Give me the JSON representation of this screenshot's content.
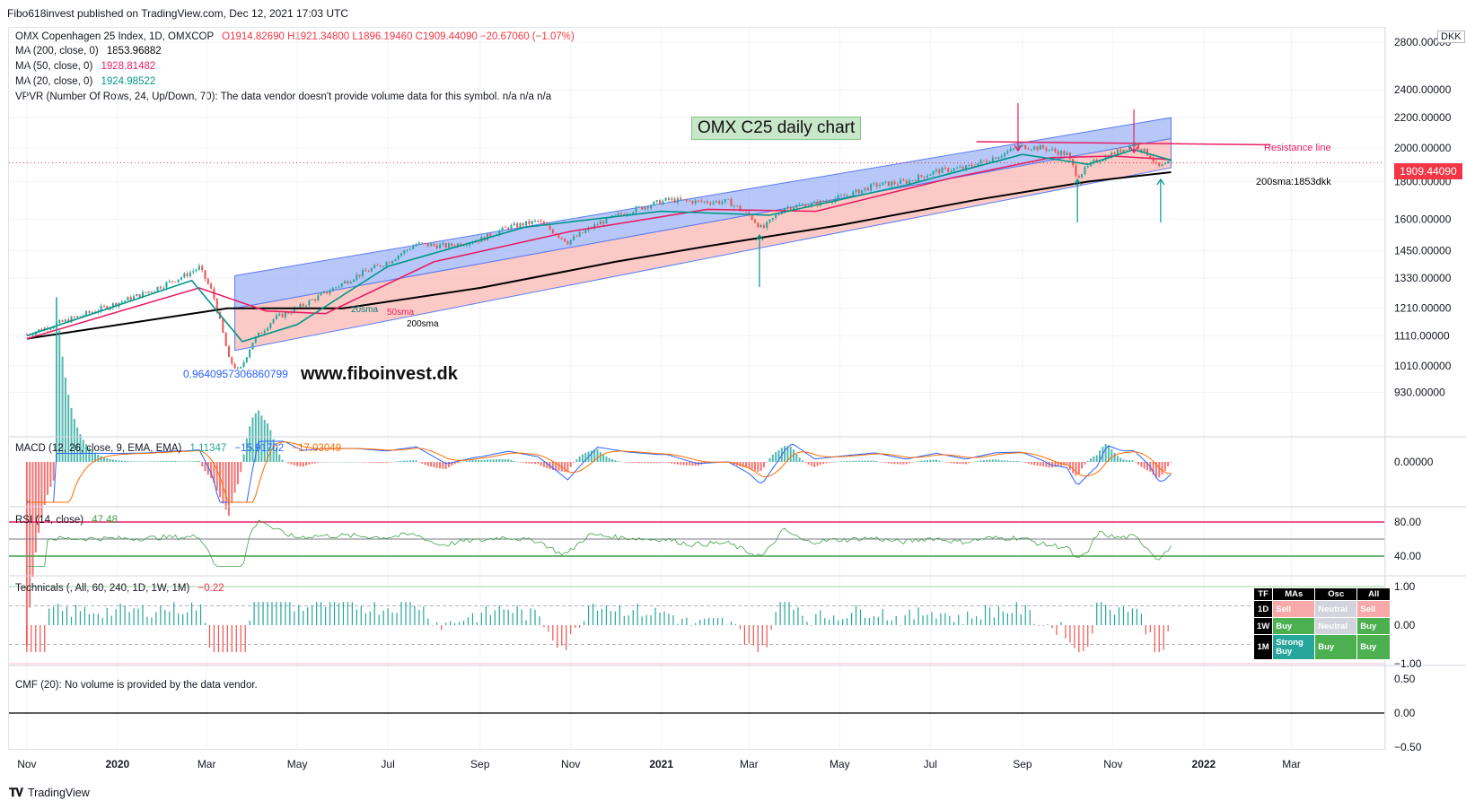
{
  "header": {
    "text": "Fibo618invest published on TradingView.com, Dec 12, 2021 17:03 UTC"
  },
  "legend": {
    "symbol": "OMX Copenhagen 25 Index, 1D, OMXCOP",
    "ohlc": "O1914.82690 H1921.34800 L1896.19460 C1909.44090 −20.67060 (−1.07%)",
    "ma200_label": "MA (200, close, 0)",
    "ma200_value": "1853.96882",
    "ma50_label": "MA (50, close, 0)",
    "ma50_value": "1928.81482",
    "ma20_label": "MA (20, close, 0)",
    "ma20_value": "1924.98522",
    "vpvr": "VPVR (Number Of Rows, 24, Up/Down, 70): The data vendor doesn't provide volume data for this symbol.  n/a  n/a  n/a"
  },
  "currency": "DKK",
  "last_price_tag": "1909.44090",
  "annotations": {
    "title": "OMX C25 daily chart",
    "website": "www.fiboinvest.dk",
    "fib_label": "0.9640957306860799",
    "resistance": "Resistance line",
    "sma200_note": "200sma:1853dkk",
    "label_20sma": "20sma",
    "label_50sma": "50sma",
    "label_200sma": "200sma"
  },
  "macd": {
    "label": "MACD (12, 26, close, 9, EMA, EMA)",
    "v1": "1.11347",
    "v2": "−15.91702",
    "v3": "−17.03049",
    "axis": [
      "0.00000"
    ]
  },
  "rsi": {
    "label": "RSI (14, close)",
    "value": "47.48",
    "axis": [
      "80.00",
      "40.00"
    ]
  },
  "technicals": {
    "label": "Technicals (, All, 60, 240, 1D, 1W, 1M)",
    "value": "−0.22",
    "axis": [
      "1.00",
      "0.00",
      "−1.00"
    ],
    "table": {
      "headers": [
        "TF",
        "MAs",
        "Osc",
        "All"
      ],
      "rows": [
        {
          "tf": "1D",
          "mas": "Sell",
          "osc": "Neutral",
          "all": "Sell"
        },
        {
          "tf": "1W",
          "mas": "Buy",
          "osc": "Neutral",
          "all": "Buy"
        },
        {
          "tf": "1M",
          "mas": "Strong Buy",
          "osc": "Buy",
          "all": "Buy"
        }
      ]
    }
  },
  "cmf": {
    "label": "CMF (20): No volume is provided by the data vendor.",
    "axis": [
      "0.50",
      "0.00",
      "−0.50"
    ]
  },
  "footer": {
    "brand": "TradingView"
  },
  "colors": {
    "up": "#26a69a",
    "down": "#ef5350",
    "ma200": "#000000",
    "ma50": "#e91e63",
    "ma20": "#009688",
    "channel_blue": "#9fb4f5",
    "channel_red": "#f9b8b3"
  },
  "chart_data": {
    "type": "candlestick",
    "price_axis": {
      "ticks": [
        2800,
        2400,
        2200,
        2000,
        1800,
        1600,
        1450,
        1330,
        1210,
        1110,
        1010,
        930
      ],
      "tick_labels": [
        "2800.00000",
        "2400.00000",
        "2200.00000",
        "2000.00000",
        "1800.00000",
        "1600.00000",
        "1450.00000",
        "1330.00000",
        "1210.00000",
        "1110.00000",
        "1010.00000",
        "930.00000"
      ],
      "scale": "log"
    },
    "time_axis": {
      "labels": [
        "Nov",
        "2020",
        "Mar",
        "May",
        "Jul",
        "Sep",
        "Nov",
        "2021",
        "Mar",
        "May",
        "Jul",
        "Sep",
        "Nov",
        "2022",
        "Mar"
      ]
    },
    "price_path": [
      [
        "2019-11-01",
        1115
      ],
      [
        "2019-12-01",
        1170
      ],
      [
        "2020-01-01",
        1230
      ],
      [
        "2020-01-20",
        1270
      ],
      [
        "2020-02-15",
        1340
      ],
      [
        "2020-02-25",
        1375
      ],
      [
        "2020-03-05",
        1270
      ],
      [
        "2020-03-16",
        1030
      ],
      [
        "2020-03-23",
        990
      ],
      [
        "2020-04-01",
        1090
      ],
      [
        "2020-04-15",
        1170
      ],
      [
        "2020-05-01",
        1210
      ],
      [
        "2020-05-20",
        1270
      ],
      [
        "2020-06-10",
        1340
      ],
      [
        "2020-07-01",
        1400
      ],
      [
        "2020-07-20",
        1480
      ],
      [
        "2020-08-10",
        1470
      ],
      [
        "2020-09-01",
        1500
      ],
      [
        "2020-09-20",
        1560
      ],
      [
        "2020-10-10",
        1590
      ],
      [
        "2020-10-30",
        1490
      ],
      [
        "2020-11-20",
        1580
      ],
      [
        "2020-12-10",
        1640
      ],
      [
        "2021-01-05",
        1700
      ],
      [
        "2021-01-25",
        1690
      ],
      [
        "2021-02-15",
        1690
      ],
      [
        "2021-03-01",
        1620
      ],
      [
        "2021-03-10",
        1550
      ],
      [
        "2021-03-25",
        1660
      ],
      [
        "2021-04-15",
        1680
      ],
      [
        "2021-05-05",
        1720
      ],
      [
        "2021-05-25",
        1780
      ],
      [
        "2021-06-15",
        1800
      ],
      [
        "2021-07-05",
        1860
      ],
      [
        "2021-07-25",
        1880
      ],
      [
        "2021-08-15",
        1950
      ],
      [
        "2021-08-31",
        2010
      ],
      [
        "2021-09-15",
        2000
      ],
      [
        "2021-10-01",
        1960
      ],
      [
        "2021-10-08",
        1830
      ],
      [
        "2021-10-20",
        1920
      ],
      [
        "2021-11-05",
        1980
      ],
      [
        "2021-11-15",
        2030
      ],
      [
        "2021-11-26",
        1950
      ],
      [
        "2021-12-01",
        1880
      ],
      [
        "2021-12-10",
        1909
      ]
    ],
    "ma20_path": [
      [
        "2019-11-01",
        1110
      ],
      [
        "2020-02-20",
        1320
      ],
      [
        "2020-03-25",
        1090
      ],
      [
        "2020-05-01",
        1150
      ],
      [
        "2020-07-01",
        1380
      ],
      [
        "2020-10-01",
        1560
      ],
      [
        "2021-01-01",
        1640
      ],
      [
        "2021-03-15",
        1620
      ],
      [
        "2021-06-15",
        1780
      ],
      [
        "2021-09-01",
        1960
      ],
      [
        "2021-10-15",
        1900
      ],
      [
        "2021-11-15",
        1990
      ],
      [
        "2021-12-10",
        1925
      ]
    ],
    "ma50_path": [
      [
        "2019-11-01",
        1100
      ],
      [
        "2020-02-25",
        1290
      ],
      [
        "2020-04-10",
        1200
      ],
      [
        "2020-05-20",
        1190
      ],
      [
        "2020-08-01",
        1400
      ],
      [
        "2020-11-01",
        1540
      ],
      [
        "2021-02-01",
        1650
      ],
      [
        "2021-04-15",
        1640
      ],
      [
        "2021-07-15",
        1820
      ],
      [
        "2021-09-20",
        1940
      ],
      [
        "2021-11-01",
        1950
      ],
      [
        "2021-12-10",
        1929
      ]
    ],
    "ma200_path": [
      [
        "2019-11-01",
        1100
      ],
      [
        "2020-03-15",
        1210
      ],
      [
        "2020-06-01",
        1210
      ],
      [
        "2020-09-01",
        1290
      ],
      [
        "2020-12-01",
        1400
      ],
      [
        "2021-02-01",
        1470
      ],
      [
        "2021-05-01",
        1570
      ],
      [
        "2021-08-01",
        1700
      ],
      [
        "2021-10-15",
        1800
      ],
      [
        "2021-12-10",
        1854
      ]
    ],
    "channel_upper": [
      [
        "2020-03-20",
        1340
      ],
      [
        "2021-12-10",
        2200
      ]
    ],
    "channel_mid": [
      [
        "2020-03-20",
        1210
      ],
      [
        "2021-12-10",
        2060
      ]
    ],
    "channel_lower": [
      [
        "2020-03-20",
        1060
      ],
      [
        "2021-12-10",
        1880
      ]
    ],
    "resistance_line": [
      [
        "2021-08-01",
        2040
      ],
      [
        "2022-02-15",
        2020
      ]
    ],
    "last_price": 1909.4409
  }
}
